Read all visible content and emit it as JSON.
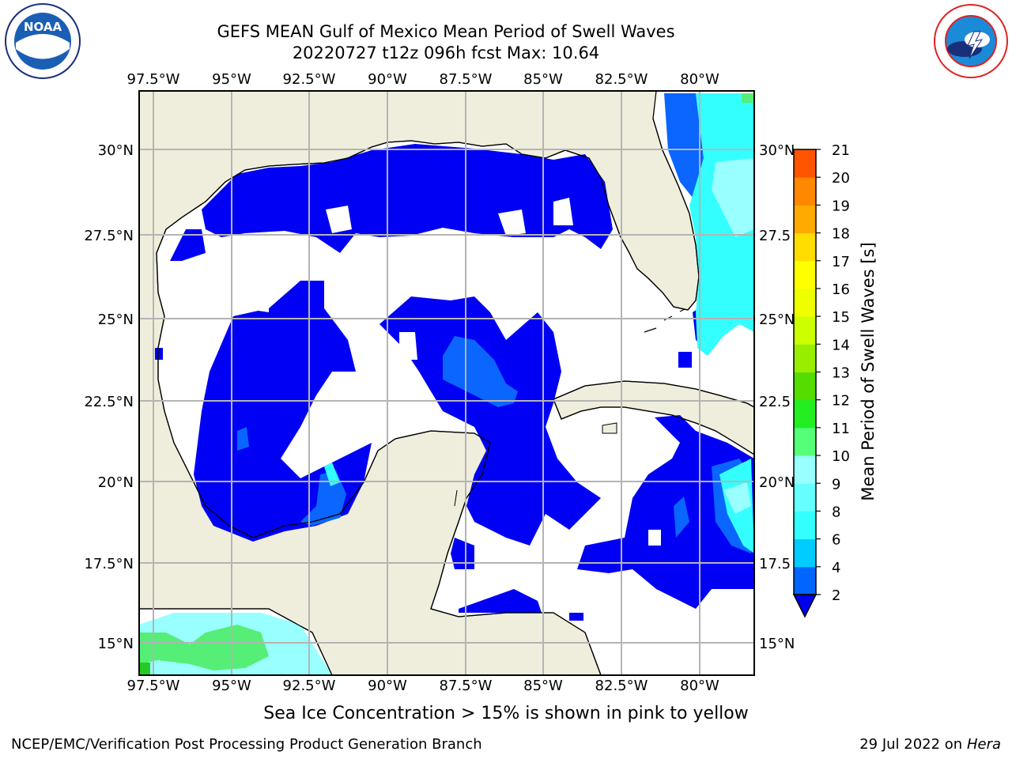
{
  "header": {
    "title_line1": "GEFS MEAN Gulf of Mexico Mean Period of Swell Waves",
    "title_line2": "20220727 t12z 096h fcst   Max: 10.64"
  },
  "logos": {
    "noaa": {
      "text": "NOAA",
      "ring_text": "NATIONAL OCEANIC AND ATMOSPHERIC ADMINISTRATION · U.S. DEPARTMENT OF COMMERCE"
    },
    "nws": {
      "ring_text": "NATIONAL WEATHER SERVICE"
    }
  },
  "map": {
    "lon_ticks": [
      "97.5°W",
      "95°W",
      "92.5°W",
      "90°W",
      "87.5°W",
      "85°W",
      "82.5°W",
      "80°W"
    ],
    "lat_ticks_left": [
      "30°N",
      "27.5°N",
      "25°N",
      "22.5°N",
      "20°N",
      "17.5°N",
      "15°N"
    ],
    "lat_ticks_right": [
      "30°N",
      "27.5",
      "25°N",
      "22.5",
      "20°N",
      "17.5",
      "15°N"
    ],
    "colors": {
      "land": "#efeedc",
      "ocean_low": "#0000f5",
      "grid": "#b4b4b4"
    }
  },
  "colorbar": {
    "label": "Mean Period of Swell Waves [s]",
    "ticks": [
      "2",
      "4",
      "6",
      "8",
      "9",
      "10",
      "11",
      "12",
      "13",
      "14",
      "15",
      "16",
      "17",
      "18",
      "19",
      "20",
      "21"
    ],
    "colors": [
      "#0066ff",
      "#00ccff",
      "#33ffff",
      "#66ffff",
      "#99ffff",
      "#55ff77",
      "#22ee22",
      "#55dd00",
      "#99ee00",
      "#ccff00",
      "#eeff00",
      "#ffff00",
      "#ffdd00",
      "#ffaa00",
      "#ff8800",
      "#ff5500",
      "#ff2200",
      "#ff0000"
    ],
    "under_color": "#0000ee"
  },
  "note": "Sea Ice Concentration > 15% is shown in pink to yellow",
  "footer": {
    "left": "NCEP/EMC/Verification Post Processing Product Generation Branch",
    "date": "29 Jul 2022 on ",
    "host": "Hera"
  }
}
